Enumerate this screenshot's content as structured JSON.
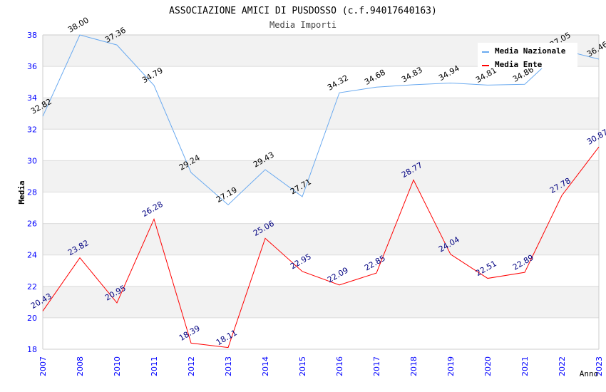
{
  "chart_data": {
    "type": "line",
    "title": "ASSOCIAZIONE AMICI DI PUSDOSSO (c.f.94017640163)",
    "subtitle": "Media Importi",
    "xlabel": "Anno",
    "ylabel": "Media",
    "ylim": [
      18,
      38
    ],
    "yticks": [
      18,
      20,
      22,
      24,
      26,
      28,
      30,
      32,
      34,
      36,
      38
    ],
    "categories": [
      "2007",
      "2008",
      "2010",
      "2011",
      "2012",
      "2013",
      "2014",
      "2015",
      "2016",
      "2017",
      "2018",
      "2019",
      "2020",
      "2021",
      "2022",
      "2023"
    ],
    "legend_position": "top-right",
    "grid": true,
    "series": [
      {
        "name": "Media Nazionale",
        "color": "#6aaaf0",
        "label_color": "#000000",
        "values": [
          32.82,
          38.0,
          37.36,
          34.79,
          29.24,
          27.19,
          29.43,
          27.71,
          34.32,
          34.68,
          34.83,
          34.94,
          34.81,
          34.86,
          37.05,
          36.46
        ]
      },
      {
        "name": "Media Ente",
        "color": "#ff0000",
        "label_color": "#000080",
        "values": [
          20.43,
          23.82,
          20.95,
          26.28,
          18.39,
          18.11,
          25.06,
          22.95,
          22.09,
          22.85,
          28.77,
          24.04,
          22.51,
          22.89,
          27.78,
          30.87
        ]
      }
    ]
  }
}
